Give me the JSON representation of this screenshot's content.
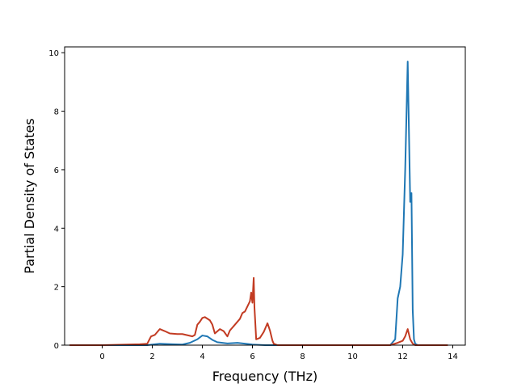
{
  "chart_data": {
    "type": "line",
    "title": "",
    "xlabel": "Frequency (THz)",
    "ylabel": "Partial Density of States",
    "xlim": [
      -1.5,
      14.5
    ],
    "ylim": [
      0,
      10.2
    ],
    "xticks": [
      0,
      2,
      4,
      6,
      8,
      10,
      12,
      14
    ],
    "xtick_labels": [
      "0",
      "2",
      "4",
      "6",
      "8",
      "10",
      "12",
      "14"
    ],
    "yticks": [
      0,
      2,
      4,
      6,
      8,
      10
    ],
    "ytick_labels": [
      "0",
      "2",
      "4",
      "6",
      "8",
      "10"
    ],
    "grid": false,
    "legend": false,
    "series": [
      {
        "color": "#1f77b4",
        "x": [
          -1.3,
          1.8,
          2.0,
          2.3,
          2.8,
          3.2,
          3.5,
          3.8,
          4.0,
          4.2,
          4.4,
          4.6,
          5.0,
          5.4,
          5.8,
          6.0,
          6.5,
          7.0,
          11.5,
          11.7,
          11.8,
          11.9,
          12.0,
          12.1,
          12.2,
          12.3,
          12.35,
          12.4,
          12.45,
          12.5,
          12.6,
          13.8
        ],
        "y": [
          0,
          0,
          0.02,
          0.05,
          0.03,
          0.02,
          0.08,
          0.2,
          0.33,
          0.3,
          0.18,
          0.1,
          0.06,
          0.08,
          0.04,
          0.02,
          0,
          0,
          0,
          0.2,
          1.6,
          2.0,
          3.1,
          6.0,
          9.7,
          4.9,
          5.2,
          1.2,
          0.2,
          0.05,
          0,
          0
        ]
      },
      {
        "color": "#c23b22",
        "x": [
          -1.3,
          0.0,
          1.5,
          1.8,
          1.95,
          2.1,
          2.3,
          2.5,
          2.7,
          3.0,
          3.2,
          3.6,
          3.7,
          3.8,
          3.9,
          4.0,
          4.1,
          4.3,
          4.4,
          4.5,
          4.7,
          4.85,
          5.0,
          5.1,
          5.3,
          5.5,
          5.6,
          5.7,
          5.9,
          5.95,
          6.0,
          6.05,
          6.08,
          6.15,
          6.3,
          6.45,
          6.6,
          6.7,
          6.8,
          6.85,
          7.0,
          11.5,
          11.8,
          12.0,
          12.1,
          12.2,
          12.3,
          12.4,
          12.5,
          13.8
        ],
        "y": [
          0,
          0,
          0.03,
          0.05,
          0.3,
          0.35,
          0.55,
          0.48,
          0.4,
          0.38,
          0.38,
          0.3,
          0.35,
          0.7,
          0.8,
          0.93,
          0.96,
          0.85,
          0.7,
          0.4,
          0.55,
          0.48,
          0.3,
          0.5,
          0.7,
          0.9,
          1.1,
          1.15,
          1.5,
          1.8,
          1.45,
          2.3,
          1.3,
          0.2,
          0.25,
          0.45,
          0.75,
          0.5,
          0.15,
          0.05,
          0,
          0,
          0.08,
          0.15,
          0.3,
          0.55,
          0.2,
          0.05,
          0,
          0
        ]
      }
    ]
  }
}
